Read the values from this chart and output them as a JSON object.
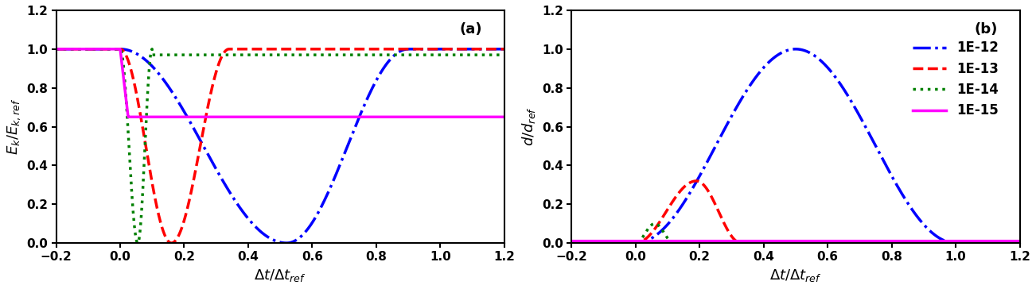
{
  "xlim": [
    -0.2,
    1.2
  ],
  "ylim_a": [
    0,
    1.2
  ],
  "ylim_b": [
    0,
    1.2
  ],
  "xticks": [
    -0.2,
    0,
    0.2,
    0.4,
    0.6,
    0.8,
    1.0,
    1.2
  ],
  "yticks_a": [
    0,
    0.2,
    0.4,
    0.6,
    0.8,
    1.0,
    1.2
  ],
  "yticks_b": [
    0,
    0.2,
    0.4,
    0.6,
    0.8,
    1.0,
    1.2
  ],
  "xlabel": "$\\Delta t/\\Delta t_{ref}$",
  "ylabel_a": "$E_k/E_{k,ref}$",
  "ylabel_b": "$d/d_{ref}$",
  "label_a": "(a)",
  "label_b": "(b)",
  "legend_labels": [
    "1E-12",
    "1E-13",
    "1E-14",
    "1E-15"
  ],
  "colors": [
    "blue",
    "red",
    "green",
    "magenta"
  ],
  "linewidths": [
    2.5,
    2.5,
    2.5,
    2.5
  ],
  "background_color": "#ffffff",
  "fontsize_label": 13,
  "fontsize_tick": 11,
  "fontsize_legend": 12,
  "fontsize_annot": 13
}
